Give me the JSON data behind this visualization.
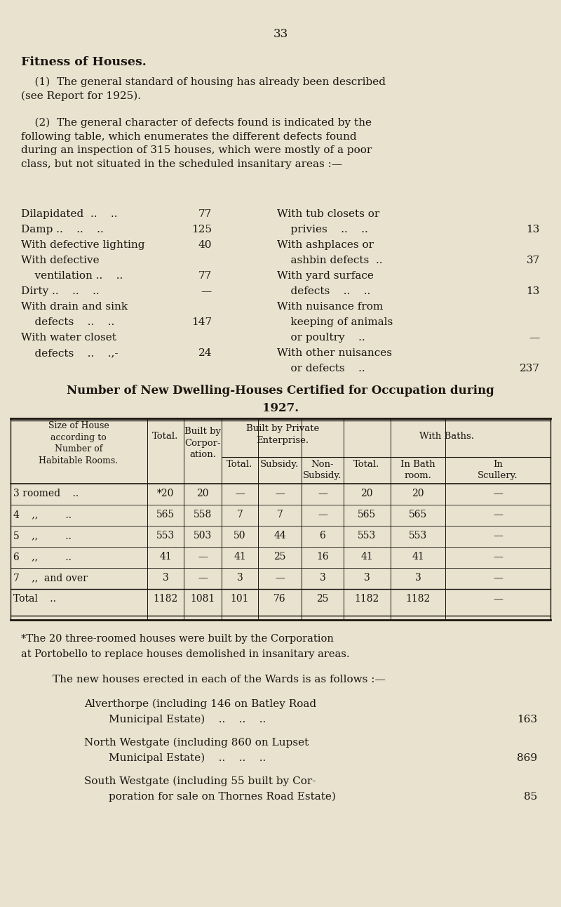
{
  "bg_color": "#e8e2cf",
  "text_color": "#1a1510",
  "page_number": "33",
  "title": "Fitness of Houses.",
  "para1_indent": "    (1)  The general standard of housing has already been described\n(see Report for 1925).",
  "para2_indent": "    (2)  The general character of defects found is indicated by the\nfollowing table, which enumerates the different defects found\nduring an inspection of 315 houses, which were mostly of a poor\nclass, but not situated in the scheduled insanitary areas :—",
  "left_labels": [
    "Dilapidated  ..    ..   ",
    "Damp ..    ..    ..   ",
    "With defective lighting",
    "With defective",
    "    ventilation ..    ..   ",
    "Dirty ..    ..    ..   ",
    "With drain and sink",
    "    defects    ..    ..   ",
    "With water closet",
    "    defects    ..    .,-  "
  ],
  "left_vals": [
    "77",
    "125",
    "40",
    "",
    "77",
    "—",
    "",
    "147",
    "",
    "24"
  ],
  "right_labels": [
    "With tub closets or",
    "    privies    ..    ..   ",
    "With ashplaces or",
    "    ashbin defects  ..   ",
    "With yard surface",
    "    defects    ..    ..   ",
    "With nuisance from",
    "    keeping of animals",
    "    or poultry    ..   ",
    "With other nuisances",
    "    or defects    ..   "
  ],
  "right_vals": [
    "",
    "13",
    "",
    "37",
    "",
    "13",
    "",
    "",
    "—",
    "",
    "237"
  ],
  "table_title1": "Number of New Dwelling-Houses Certified for Occupation during",
  "table_title2": "1927.",
  "col_headers_top": [
    "Size of House\naccording to\nNumber of\nHabitable Rooms.",
    "Total.",
    "Built by\nCorpor-\nation.",
    "Built by Private\nEnterprise.",
    "With Baths."
  ],
  "col_headers_sub": [
    "Total.",
    "Subsidy.",
    "Non-\nSubsidy.",
    "Total.",
    "In Bath\nroom.",
    "In\nScullery."
  ],
  "table_data": [
    [
      "3 roomed    ..",
      "*20",
      "20",
      "—",
      "—",
      "—",
      "20",
      "20",
      "—"
    ],
    [
      "4    ,,         ..",
      "565",
      "558",
      "7",
      "7",
      "—",
      "565",
      "565",
      "—"
    ],
    [
      "5    ,,         ..",
      "553",
      "503",
      "50",
      "44",
      "6",
      "553",
      "553",
      "—"
    ],
    [
      "6    ,,         ..",
      "41",
      "—",
      "41",
      "25",
      "16",
      "41",
      "41",
      "—"
    ],
    [
      "7    ,,  and over",
      "3",
      "—",
      "3",
      "—",
      "3",
      "3",
      "3",
      "—"
    ],
    [
      "Total    ..",
      "1182",
      "1081",
      "101",
      "76",
      "25",
      "1182",
      "1182",
      "—"
    ]
  ],
  "footnote1a": "*The 20 three-roomed houses were built by the Corporation",
  "footnote1b": "at Portobello to replace houses demolished in insanitary areas.",
  "footnote2": "The new houses erected in each of the Wards is as follows :—",
  "ward1a": "Alverthorpe (including 146 on Batley Road",
  "ward1b": "Municipal Estate)    ..    ..    ..",
  "ward1n": "163",
  "ward2a": "North Westgate (including 860 on Lupset",
  "ward2b": "Municipal Estate)    ..    ..    ..",
  "ward2n": "869",
  "ward3a": "South Westgate (including 55 built by Cor-",
  "ward3b": "poration for sale on Thornes Road Estate)",
  "ward3n": "85"
}
